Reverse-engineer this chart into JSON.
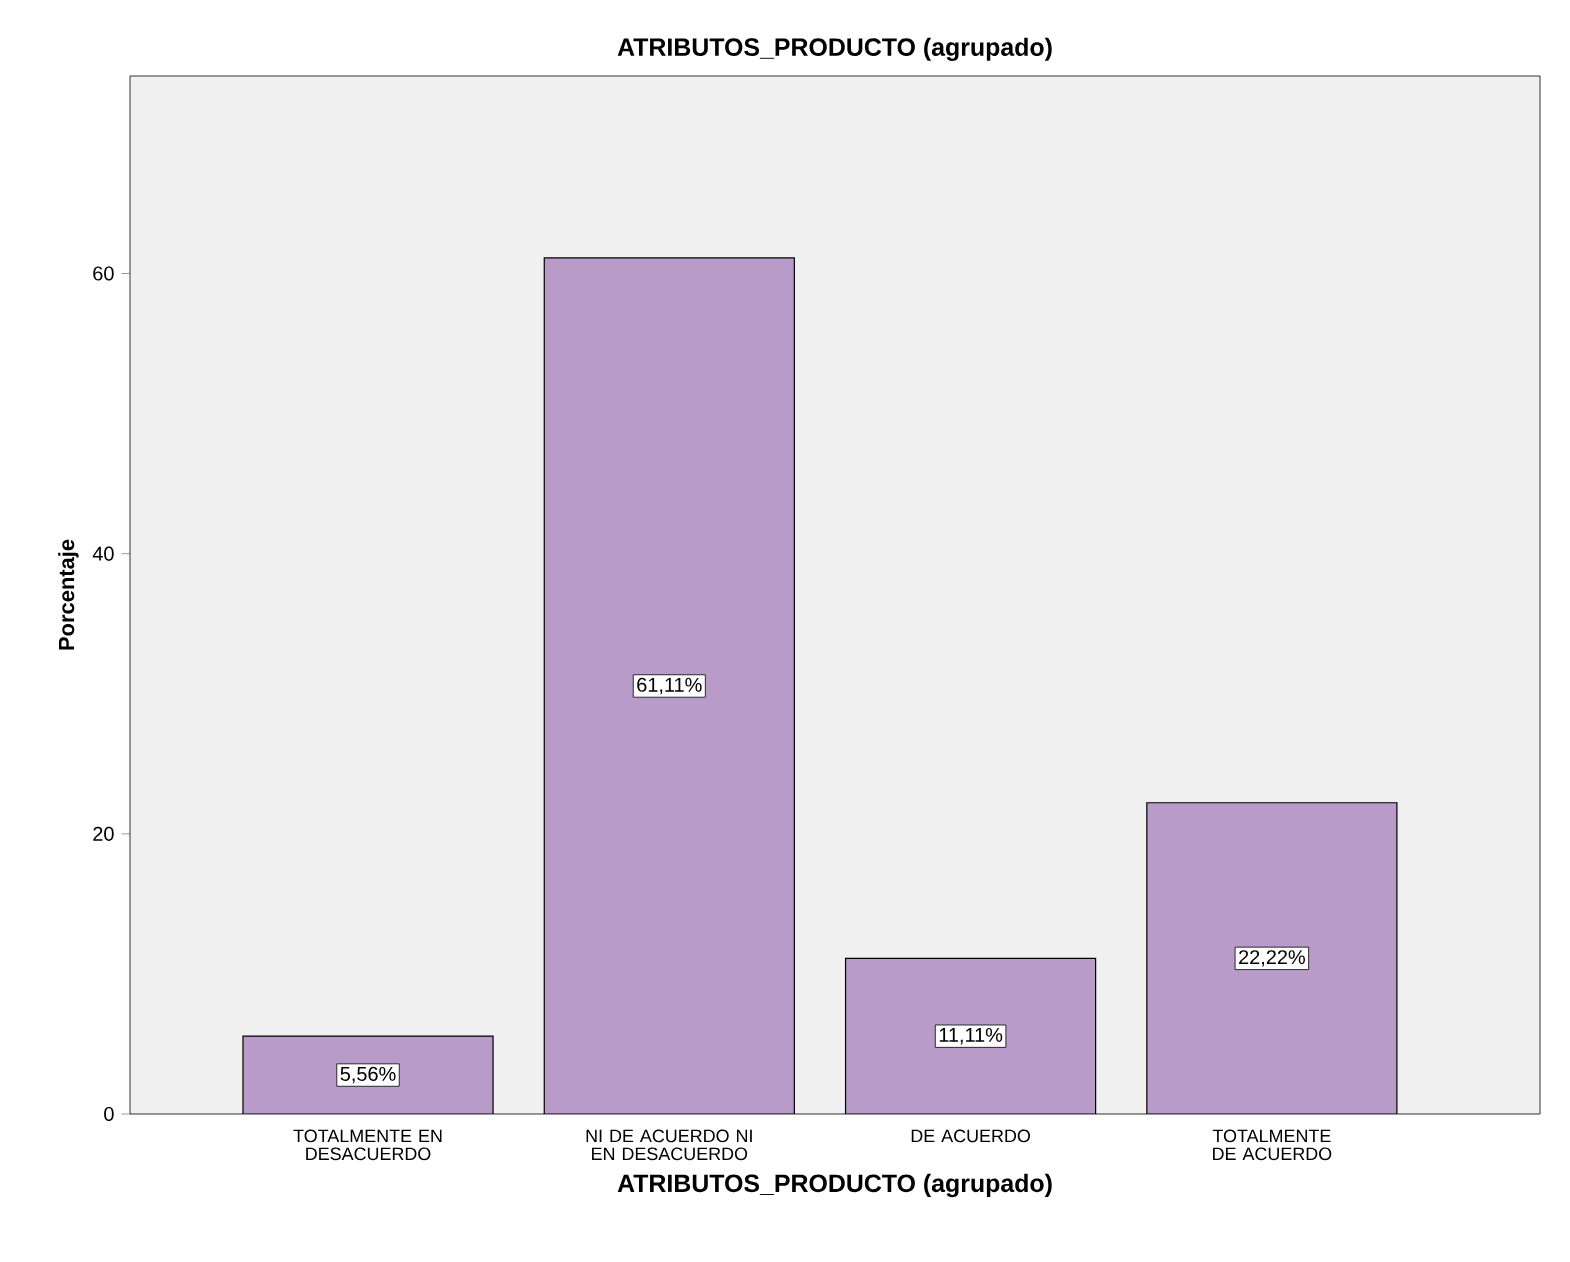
{
  "chart_data": {
    "type": "bar",
    "title": "ATRIBUTOS_PRODUCTO (agrupado)",
    "xlabel": "ATRIBUTOS_PRODUCTO (agrupado)",
    "ylabel": "Porcentaje",
    "categories": [
      "TOTALMENTE EN DESACUERDO",
      "NI DE ACUERDO NI EN DESACUERDO",
      "DE ACUERDO",
      "TOTALMENTE DE ACUERDO"
    ],
    "values": [
      5.56,
      61.11,
      11.11,
      22.22
    ],
    "value_labels": [
      "5,56%",
      "61,11%",
      "11,11%",
      "22,22%"
    ],
    "color": "#b89bc9",
    "ylim": [
      0,
      74.1
    ],
    "yticks": [
      0,
      20,
      40,
      60
    ]
  }
}
